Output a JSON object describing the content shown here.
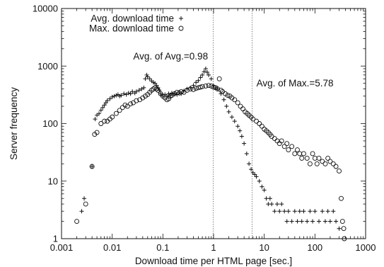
{
  "chart_data": {
    "type": "scatter",
    "xlabel": "Download time per HTML page [sec.]",
    "ylabel": "Server frequency",
    "x_scale": "log",
    "y_scale": "log",
    "xlim": [
      0.001,
      1000
    ],
    "ylim": [
      1,
      10000
    ],
    "x_ticks": [
      0.001,
      0.01,
      0.1,
      1,
      10,
      100,
      1000
    ],
    "x_tick_labels": [
      "0.001",
      "0.01",
      "0.1",
      "1",
      "10",
      "100",
      "1000"
    ],
    "y_ticks": [
      1,
      10,
      100,
      1000,
      10000
    ],
    "y_tick_labels": [
      "1",
      "10",
      "100",
      "1000",
      "10000"
    ],
    "grid": false,
    "legend_position": "top-left",
    "marker_color": "#111111",
    "series": [
      {
        "name": "Avg. download time",
        "marker": "plus",
        "points": [
          [
            0.0025,
            3
          ],
          [
            0.0028,
            5
          ],
          [
            0.004,
            18
          ],
          [
            0.0046,
            120
          ],
          [
            0.005,
            140
          ],
          [
            0.0055,
            150
          ],
          [
            0.006,
            170
          ],
          [
            0.0065,
            190
          ],
          [
            0.007,
            210
          ],
          [
            0.0075,
            230
          ],
          [
            0.008,
            250
          ],
          [
            0.009,
            270
          ],
          [
            0.01,
            290
          ],
          [
            0.011,
            300
          ],
          [
            0.012,
            310
          ],
          [
            0.013,
            320
          ],
          [
            0.014,
            300
          ],
          [
            0.015,
            310
          ],
          [
            0.017,
            330
          ],
          [
            0.019,
            320
          ],
          [
            0.021,
            340
          ],
          [
            0.023,
            330
          ],
          [
            0.025,
            360
          ],
          [
            0.028,
            340
          ],
          [
            0.03,
            360
          ],
          [
            0.034,
            380
          ],
          [
            0.038,
            400
          ],
          [
            0.042,
            420
          ],
          [
            0.045,
            600
          ],
          [
            0.048,
            700
          ],
          [
            0.05,
            650
          ],
          [
            0.055,
            600
          ],
          [
            0.06,
            550
          ],
          [
            0.065,
            520
          ],
          [
            0.07,
            500
          ],
          [
            0.075,
            460
          ],
          [
            0.08,
            420
          ],
          [
            0.085,
            380
          ],
          [
            0.09,
            330
          ],
          [
            0.1,
            300
          ],
          [
            0.11,
            320
          ],
          [
            0.12,
            300
          ],
          [
            0.13,
            330
          ],
          [
            0.14,
            310
          ],
          [
            0.15,
            340
          ],
          [
            0.17,
            330
          ],
          [
            0.19,
            320
          ],
          [
            0.21,
            350
          ],
          [
            0.23,
            330
          ],
          [
            0.26,
            370
          ],
          [
            0.3,
            400
          ],
          [
            0.35,
            420
          ],
          [
            0.4,
            460
          ],
          [
            0.45,
            520
          ],
          [
            0.5,
            560
          ],
          [
            0.55,
            630
          ],
          [
            0.6,
            700
          ],
          [
            0.65,
            800
          ],
          [
            0.7,
            900
          ],
          [
            0.75,
            780
          ],
          [
            0.8,
            700
          ],
          [
            0.9,
            600
          ],
          [
            1,
            450
          ],
          [
            1.1,
            420
          ],
          [
            1.2,
            400
          ],
          [
            1.4,
            330
          ],
          [
            1.6,
            260
          ],
          [
            1.8,
            200
          ],
          [
            2,
            160
          ],
          [
            2.3,
            130
          ],
          [
            2.6,
            110
          ],
          [
            3,
            90
          ],
          [
            3.3,
            75
          ],
          [
            3.6,
            60
          ],
          [
            4,
            45
          ],
          [
            4.5,
            30
          ],
          [
            5,
            20
          ],
          [
            5.5,
            16
          ],
          [
            6,
            14
          ],
          [
            6.5,
            13
          ],
          [
            7,
            12
          ],
          [
            8,
            10
          ],
          [
            9,
            8
          ],
          [
            10,
            7
          ],
          [
            11,
            5
          ],
          [
            12,
            4
          ],
          [
            13,
            5
          ],
          [
            14,
            4
          ],
          [
            16,
            3
          ],
          [
            18,
            4
          ],
          [
            20,
            3
          ],
          [
            22,
            4
          ],
          [
            25,
            3
          ],
          [
            28,
            2
          ],
          [
            30,
            3
          ],
          [
            35,
            2
          ],
          [
            40,
            3
          ],
          [
            45,
            2
          ],
          [
            50,
            3
          ],
          [
            55,
            2
          ],
          [
            60,
            3
          ],
          [
            70,
            2
          ],
          [
            80,
            3
          ],
          [
            90,
            2
          ],
          [
            100,
            3
          ],
          [
            120,
            2
          ],
          [
            140,
            3
          ],
          [
            160,
            2
          ],
          [
            180,
            3
          ],
          [
            200,
            2
          ],
          [
            230,
            3
          ],
          [
            260,
            2
          ],
          [
            300,
            1.5
          ]
        ]
      },
      {
        "name": "Max. download time",
        "marker": "circle",
        "points": [
          [
            0.002,
            2
          ],
          [
            0.003,
            4
          ],
          [
            0.004,
            18
          ],
          [
            0.0045,
            65
          ],
          [
            0.005,
            70
          ],
          [
            0.006,
            100
          ],
          [
            0.007,
            110
          ],
          [
            0.008,
            110
          ],
          [
            0.009,
            120
          ],
          [
            0.01,
            130
          ],
          [
            0.012,
            150
          ],
          [
            0.014,
            170
          ],
          [
            0.016,
            190
          ],
          [
            0.018,
            210
          ],
          [
            0.02,
            200
          ],
          [
            0.023,
            220
          ],
          [
            0.026,
            230
          ],
          [
            0.03,
            250
          ],
          [
            0.035,
            260
          ],
          [
            0.04,
            280
          ],
          [
            0.045,
            300
          ],
          [
            0.05,
            320
          ],
          [
            0.055,
            350
          ],
          [
            0.06,
            380
          ],
          [
            0.065,
            400
          ],
          [
            0.07,
            420
          ],
          [
            0.075,
            400
          ],
          [
            0.08,
            380
          ],
          [
            0.09,
            330
          ],
          [
            0.1,
            300
          ],
          [
            0.11,
            280
          ],
          [
            0.12,
            260
          ],
          [
            0.13,
            270
          ],
          [
            0.14,
            300
          ],
          [
            0.15,
            310
          ],
          [
            0.17,
            330
          ],
          [
            0.19,
            350
          ],
          [
            0.21,
            340
          ],
          [
            0.23,
            360
          ],
          [
            0.26,
            350
          ],
          [
            0.3,
            380
          ],
          [
            0.35,
            400
          ],
          [
            0.4,
            390
          ],
          [
            0.45,
            410
          ],
          [
            0.5,
            420
          ],
          [
            0.55,
            430
          ],
          [
            0.6,
            440
          ],
          [
            0.7,
            450
          ],
          [
            0.8,
            460
          ],
          [
            0.9,
            450
          ],
          [
            1,
            430
          ],
          [
            1.1,
            420
          ],
          [
            1.2,
            400
          ],
          [
            1.3,
            600
          ],
          [
            1.4,
            380
          ],
          [
            1.5,
            360
          ],
          [
            1.7,
            330
          ],
          [
            1.9,
            310
          ],
          [
            2.1,
            300
          ],
          [
            2.3,
            280
          ],
          [
            2.6,
            260
          ],
          [
            3,
            230
          ],
          [
            3.4,
            200
          ],
          [
            3.8,
            180
          ],
          [
            4.2,
            160
          ],
          [
            4.6,
            150
          ],
          [
            5,
            140
          ],
          [
            5.5,
            130
          ],
          [
            6,
            120
          ],
          [
            7,
            110
          ],
          [
            8,
            100
          ],
          [
            9,
            90
          ],
          [
            10,
            80
          ],
          [
            11,
            75
          ],
          [
            12,
            70
          ],
          [
            13,
            65
          ],
          [
            14,
            60
          ],
          [
            16,
            55
          ],
          [
            18,
            50
          ],
          [
            20,
            45
          ],
          [
            22,
            50
          ],
          [
            25,
            40
          ],
          [
            28,
            45
          ],
          [
            30,
            35
          ],
          [
            35,
            40
          ],
          [
            40,
            30
          ],
          [
            45,
            35
          ],
          [
            50,
            30
          ],
          [
            55,
            25
          ],
          [
            60,
            30
          ],
          [
            70,
            25
          ],
          [
            80,
            20
          ],
          [
            90,
            30
          ],
          [
            100,
            25
          ],
          [
            110,
            20
          ],
          [
            120,
            25
          ],
          [
            140,
            22
          ],
          [
            160,
            20
          ],
          [
            180,
            25
          ],
          [
            200,
            22
          ],
          [
            230,
            20
          ],
          [
            260,
            18
          ],
          [
            300,
            15
          ],
          [
            330,
            5
          ],
          [
            350,
            2
          ],
          [
            370,
            1.5
          ],
          [
            380,
            1
          ]
        ]
      }
    ],
    "reference_lines": [
      {
        "axis": "x",
        "value": 0.98,
        "style": "dotted",
        "label": "Avg. of Avg.=0.98"
      },
      {
        "axis": "x",
        "value": 5.78,
        "style": "dotted",
        "label": "Avg. of Max.=5.78"
      }
    ]
  }
}
